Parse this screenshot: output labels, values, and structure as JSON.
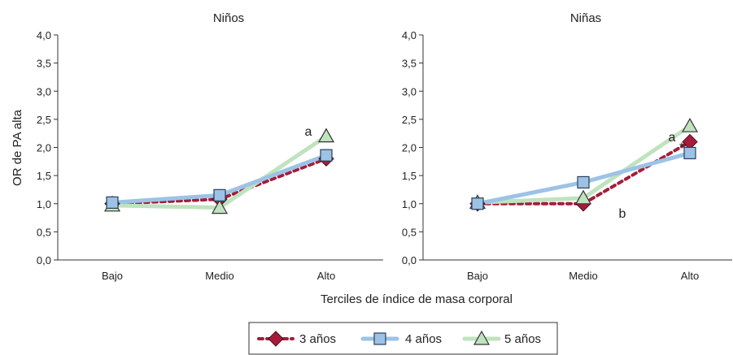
{
  "xlabel": "Terciles de índice de masa corporal",
  "ylabel": "OR de PA alta",
  "legend": [
    {
      "label": "3 años",
      "color": "#a51c3a",
      "marker": "diamond",
      "dashed": true
    },
    {
      "label": "4 años",
      "color": "#9cc3e6",
      "marker": "square",
      "dashed": false
    },
    {
      "label": "5 años",
      "color": "#bfe3be",
      "marker": "triangle",
      "dashed": false
    }
  ],
  "chart_data": [
    {
      "type": "line",
      "title": "Niños",
      "categories": [
        "Bajo",
        "Medio",
        "Alto"
      ],
      "ylim": [
        0,
        4
      ],
      "yticks": [
        "0,0",
        "0,5",
        "1,0",
        "1,5",
        "2,0",
        "2,5",
        "3,0",
        "3,5",
        "4,0"
      ],
      "grid": false,
      "series": [
        {
          "name": "3 años",
          "values": [
            1.0,
            1.08,
            1.8
          ]
        },
        {
          "name": "4 años",
          "values": [
            1.02,
            1.15,
            1.86
          ]
        },
        {
          "name": "5 años",
          "values": [
            0.97,
            0.93,
            2.2
          ]
        }
      ],
      "annotations": [
        {
          "text": "a",
          "category": "Alto",
          "y": 2.28
        }
      ]
    },
    {
      "type": "line",
      "title": "Niñas",
      "categories": [
        "Bajo",
        "Medio",
        "Alto"
      ],
      "ylim": [
        0,
        4
      ],
      "yticks": [
        "0,0",
        "0,5",
        "1,0",
        "1,5",
        "2,0",
        "2,5",
        "3,0",
        "3,5",
        "4,0"
      ],
      "grid": false,
      "series": [
        {
          "name": "3 años",
          "values": [
            1.0,
            1.0,
            2.1
          ]
        },
        {
          "name": "4 años",
          "values": [
            1.0,
            1.38,
            1.9
          ]
        },
        {
          "name": "5 años",
          "values": [
            1.02,
            1.1,
            2.38
          ]
        }
      ],
      "annotations": [
        {
          "text": "a",
          "category": "Alto",
          "y": 2.18
        },
        {
          "text": "*",
          "category": "Alto",
          "y": 2.0
        },
        {
          "text": "b",
          "category": "Medio",
          "y": 0.82
        }
      ]
    }
  ]
}
